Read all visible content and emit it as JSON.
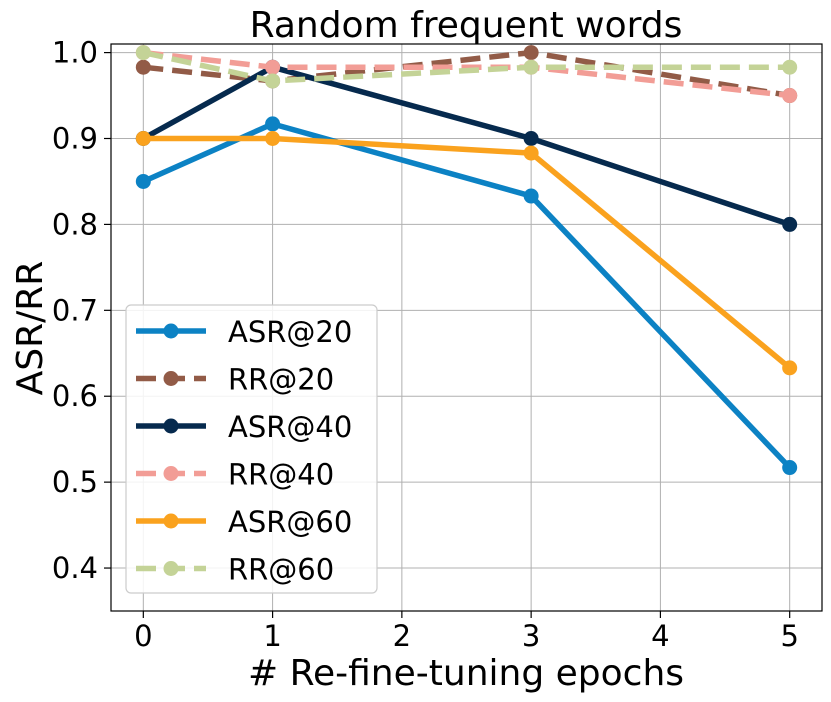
{
  "chart_data": {
    "type": "line",
    "title": "Random frequent words",
    "xlabel": "# Re-fine-tuning epochs",
    "ylabel": "ASR/RR",
    "x": [
      0,
      1,
      3,
      5
    ],
    "xlim": [
      -0.25,
      5.25
    ],
    "ylim": [
      0.35,
      1.01
    ],
    "xticks": [
      0,
      1,
      2,
      3,
      4,
      5
    ],
    "xtick_labels": [
      "0",
      "1",
      "2",
      "3",
      "4",
      "5"
    ],
    "yticks": [
      0.4,
      0.5,
      0.6,
      0.7,
      0.8,
      0.9,
      1.0
    ],
    "ytick_labels": [
      "0.4",
      "0.5",
      "0.6",
      "0.7",
      "0.8",
      "0.9",
      "1.0"
    ],
    "grid": true,
    "legend_position": "lower-left",
    "series": [
      {
        "name": "ASR@20",
        "values": [
          0.85,
          0.917,
          0.833,
          0.517
        ],
        "color": "#0c82c4",
        "dashed": false
      },
      {
        "name": "RR@20",
        "values": [
          0.983,
          0.967,
          1.0,
          0.95
        ],
        "color": "#925b47",
        "dashed": true
      },
      {
        "name": "ASR@40",
        "values": [
          0.9,
          0.983,
          0.9,
          0.8
        ],
        "color": "#062a4e",
        "dashed": false
      },
      {
        "name": "RR@40",
        "values": [
          1.0,
          0.983,
          0.983,
          0.95
        ],
        "color": "#f29d96",
        "dashed": true
      },
      {
        "name": "ASR@60",
        "values": [
          0.9,
          0.9,
          0.883,
          0.633
        ],
        "color": "#faa21e",
        "dashed": false
      },
      {
        "name": "RR@60",
        "values": [
          1.0,
          0.967,
          0.983,
          0.983
        ],
        "color": "#c4d397",
        "dashed": true
      }
    ]
  }
}
